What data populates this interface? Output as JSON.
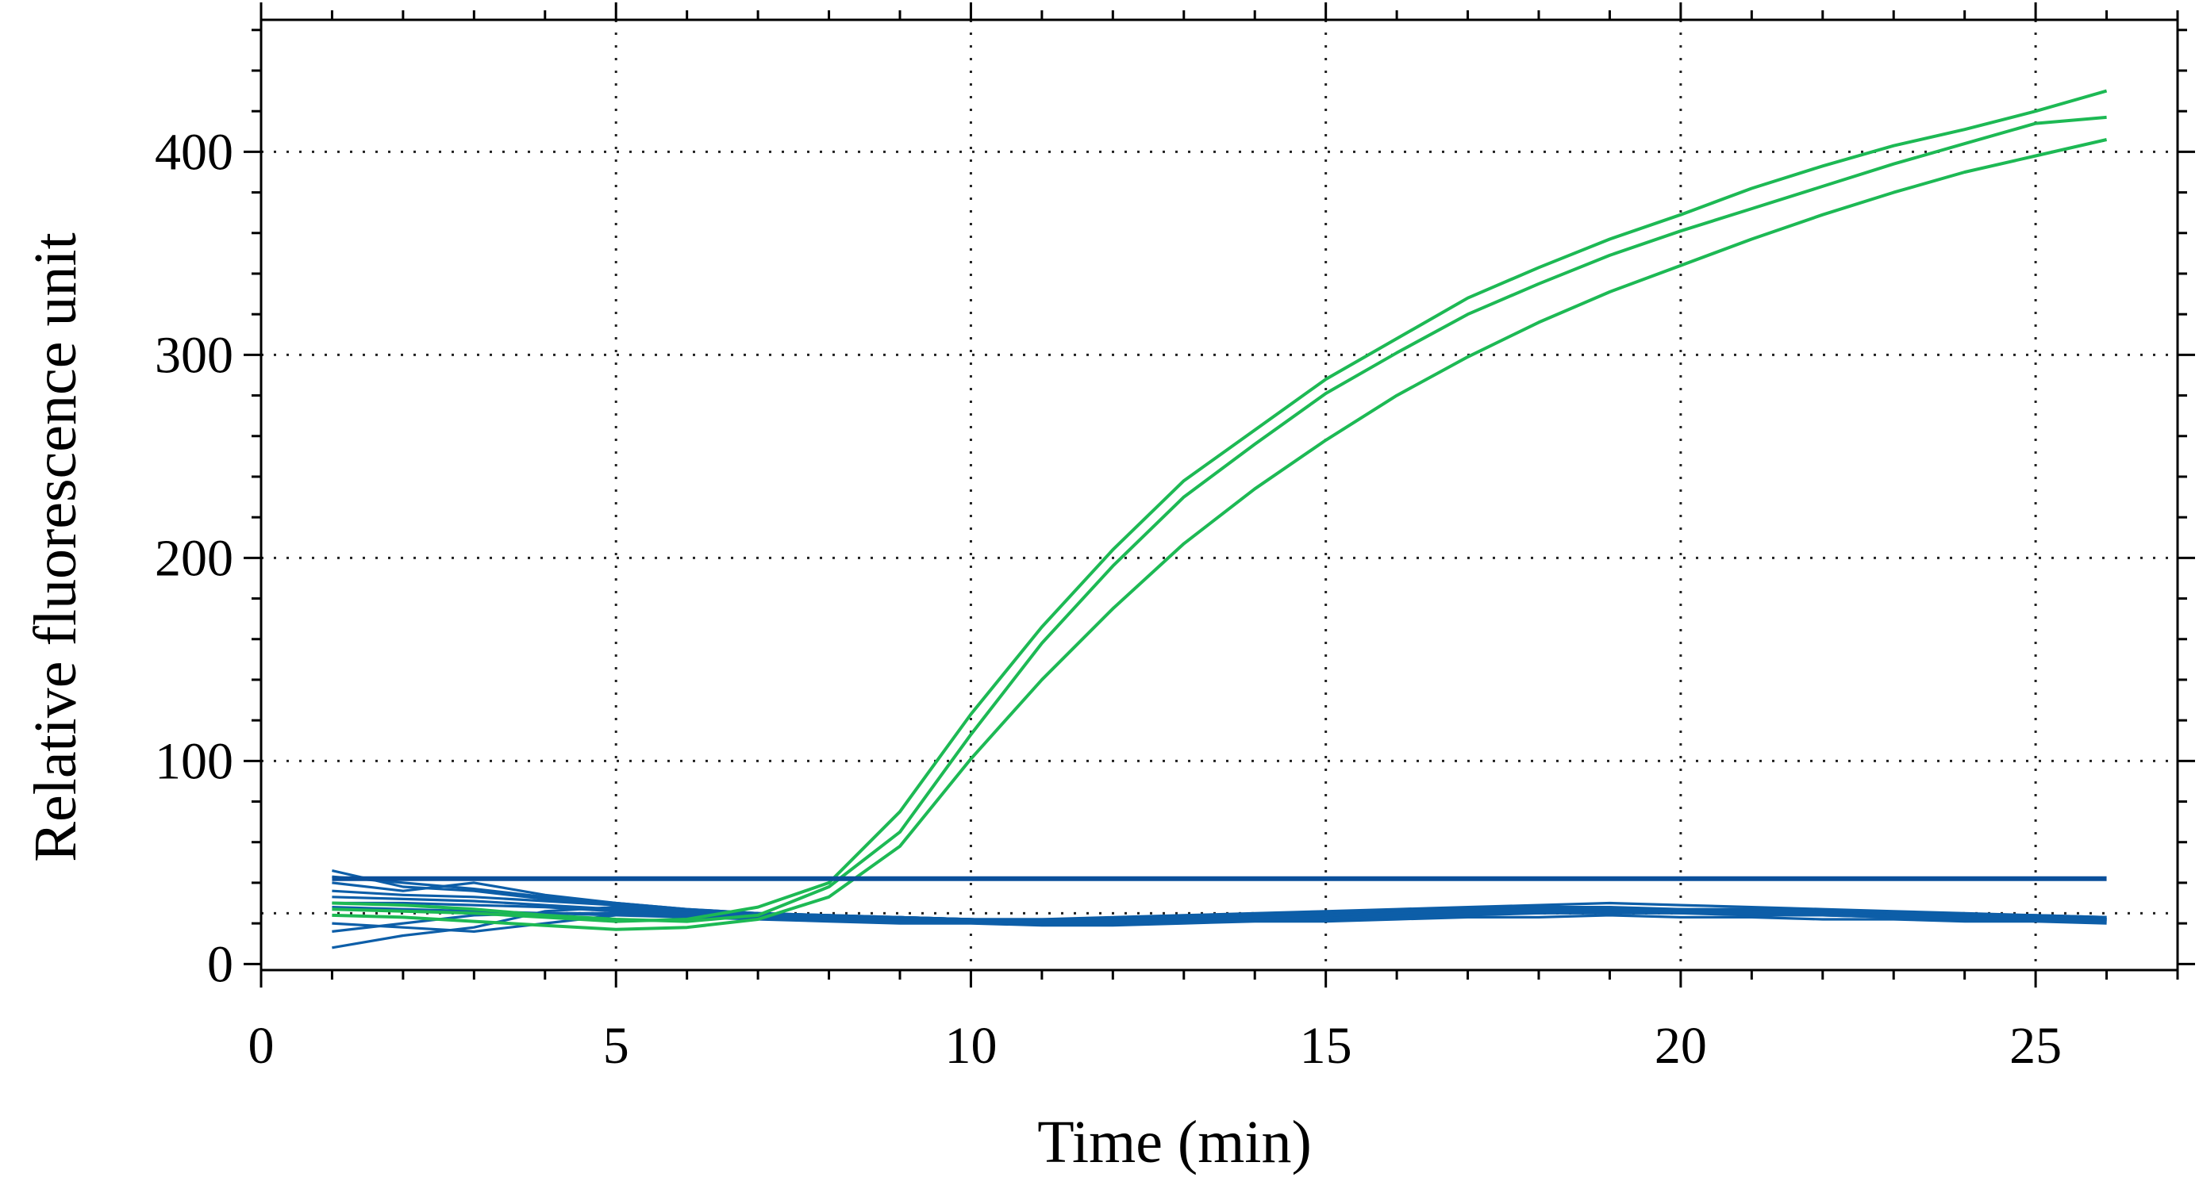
{
  "chart_data": {
    "type": "line",
    "title": "",
    "xlabel": "Time (min)",
    "ylabel": "Relative fluorescence unit",
    "xlim": [
      0,
      27
    ],
    "ylim": [
      -3,
      465
    ],
    "xticks": [
      0,
      5,
      10,
      15,
      20,
      25
    ],
    "yticks": [
      {
        "value": 0,
        "label": "0"
      },
      {
        "value": 100,
        "label": "100"
      },
      {
        "value": 200,
        "label": "200"
      },
      {
        "value": 300,
        "label": "300"
      },
      {
        "value": 400,
        "label": "400"
      }
    ],
    "grid_x": [
      5,
      10,
      15,
      20,
      25
    ],
    "grid_y": [
      25,
      100,
      200,
      300,
      400
    ],
    "grid": "dotted",
    "colors": {
      "positive": "#1db954",
      "negative": "#0d5ea8",
      "threshold": "#0a4f9a"
    },
    "threshold": {
      "y": 42,
      "x": [
        1,
        26
      ]
    },
    "positive_series": [
      {
        "x": [
          1,
          2,
          3,
          4,
          5,
          6,
          7,
          8,
          9,
          10,
          11,
          12,
          13,
          14,
          15,
          16,
          17,
          18,
          19,
          20,
          21,
          22,
          23,
          24,
          25,
          26
        ],
        "y": [
          27,
          26,
          25,
          23,
          21,
          22,
          28,
          40,
          75,
          123,
          166,
          204,
          238,
          263,
          288,
          308,
          328,
          343,
          357,
          369,
          382,
          393,
          403,
          411,
          420,
          430
        ]
      },
      {
        "x": [
          1,
          2,
          3,
          4,
          5,
          6,
          7,
          8,
          9,
          10,
          11,
          12,
          13,
          14,
          15,
          16,
          17,
          18,
          19,
          20,
          21,
          22,
          23,
          24,
          25,
          26
        ],
        "y": [
          30,
          29,
          27,
          24,
          22,
          21,
          24,
          38,
          65,
          113,
          158,
          196,
          230,
          256,
          281,
          301,
          320,
          335,
          349,
          361,
          372,
          383,
          394,
          404,
          414,
          417
        ]
      },
      {
        "x": [
          1,
          2,
          3,
          4,
          5,
          6,
          7,
          8,
          9,
          10,
          11,
          12,
          13,
          14,
          15,
          16,
          17,
          18,
          19,
          20,
          21,
          22,
          23,
          24,
          25,
          26
        ],
        "y": [
          24,
          23,
          21,
          19,
          17,
          18,
          22,
          33,
          58,
          101,
          140,
          175,
          207,
          234,
          258,
          280,
          299,
          316,
          331,
          344,
          357,
          369,
          380,
          390,
          398,
          406
        ]
      }
    ],
    "negative_series": [
      {
        "x": [
          1,
          2,
          3,
          4,
          5,
          6,
          7,
          8,
          9,
          10,
          11,
          12,
          13,
          14,
          15,
          16,
          17,
          18,
          19,
          20,
          21,
          22,
          23,
          24,
          25,
          26
        ],
        "y": [
          46,
          38,
          36,
          32,
          29,
          25,
          24,
          23,
          23,
          22,
          22,
          23,
          24,
          25,
          26,
          27,
          28,
          29,
          30,
          29,
          28,
          27,
          26,
          25,
          24,
          23
        ]
      },
      {
        "x": [
          1,
          2,
          3,
          4,
          5,
          6,
          7,
          8,
          9,
          10,
          11,
          12,
          13,
          14,
          15,
          16,
          17,
          18,
          19,
          20,
          21,
          22,
          23,
          24,
          25,
          26
        ],
        "y": [
          40,
          36,
          40,
          34,
          30,
          27,
          25,
          24,
          23,
          22,
          21,
          22,
          23,
          24,
          25,
          26,
          27,
          28,
          28,
          27,
          27,
          26,
          25,
          24,
          24,
          23
        ]
      },
      {
        "x": [
          1,
          2,
          3,
          4,
          5,
          6,
          7,
          8,
          9,
          10,
          11,
          12,
          13,
          14,
          15,
          16,
          17,
          18,
          19,
          20,
          21,
          22,
          23,
          24,
          25,
          26
        ],
        "y": [
          36,
          34,
          33,
          31,
          29,
          26,
          25,
          24,
          22,
          22,
          21,
          22,
          22,
          24,
          25,
          25,
          26,
          27,
          27,
          27,
          26,
          25,
          25,
          24,
          23,
          22
        ]
      },
      {
        "x": [
          1,
          2,
          3,
          4,
          5,
          6,
          7,
          8,
          9,
          10,
          11,
          12,
          13,
          14,
          15,
          16,
          17,
          18,
          19,
          20,
          21,
          22,
          23,
          24,
          25,
          26
        ],
        "y": [
          8,
          14,
          18,
          26,
          28,
          26,
          24,
          23,
          23,
          22,
          22,
          22,
          23,
          24,
          24,
          25,
          26,
          27,
          27,
          26,
          26,
          25,
          24,
          24,
          23,
          22
        ]
      },
      {
        "x": [
          1,
          2,
          3,
          4,
          5,
          6,
          7,
          8,
          9,
          10,
          11,
          12,
          13,
          14,
          15,
          16,
          17,
          18,
          19,
          20,
          21,
          22,
          23,
          24,
          25,
          26
        ],
        "y": [
          33,
          32,
          31,
          29,
          27,
          25,
          24,
          22,
          22,
          21,
          21,
          21,
          22,
          23,
          23,
          24,
          25,
          26,
          26,
          26,
          25,
          25,
          24,
          23,
          22,
          22
        ]
      },
      {
        "x": [
          1,
          2,
          3,
          4,
          5,
          6,
          7,
          8,
          9,
          10,
          11,
          12,
          13,
          14,
          15,
          16,
          17,
          18,
          19,
          20,
          21,
          22,
          23,
          24,
          25,
          26
        ],
        "y": [
          30,
          30,
          29,
          28,
          26,
          24,
          23,
          22,
          21,
          21,
          20,
          20,
          21,
          22,
          22,
          23,
          24,
          25,
          25,
          25,
          24,
          24,
          23,
          22,
          22,
          21
        ]
      },
      {
        "x": [
          1,
          2,
          3,
          4,
          5,
          6,
          7,
          8,
          9,
          10,
          11,
          12,
          13,
          14,
          15,
          16,
          17,
          18,
          19,
          20,
          21,
          22,
          23,
          24,
          25,
          26
        ],
        "y": [
          28,
          27,
          26,
          25,
          24,
          23,
          22,
          21,
          20,
          20,
          19,
          19,
          20,
          21,
          21,
          22,
          23,
          23,
          24,
          23,
          23,
          22,
          22,
          21,
          21,
          20
        ]
      },
      {
        "x": [
          1,
          2,
          3,
          4,
          5,
          6,
          7,
          8,
          9,
          10,
          11,
          12,
          13,
          14,
          15,
          16,
          17,
          18,
          19,
          20,
          21,
          22,
          23,
          24,
          25,
          26
        ],
        "y": [
          16,
          20,
          24,
          25,
          25,
          24,
          23,
          22,
          22,
          21,
          21,
          21,
          22,
          23,
          23,
          24,
          25,
          25,
          26,
          25,
          25,
          24,
          23,
          23,
          22,
          21
        ]
      },
      {
        "x": [
          1,
          2,
          3,
          4,
          5,
          6,
          7,
          8,
          9,
          10,
          11,
          12,
          13,
          14,
          15,
          16,
          17,
          18,
          19,
          20,
          21,
          22,
          23,
          24,
          25,
          26
        ],
        "y": [
          20,
          18,
          16,
          20,
          24,
          25,
          24,
          23,
          22,
          22,
          21,
          21,
          22,
          23,
          24,
          25,
          26,
          27,
          27,
          26,
          26,
          25,
          24,
          23,
          23,
          22
        ]
      },
      {
        "x": [
          1,
          2,
          3,
          4,
          5,
          6,
          7,
          8,
          9,
          10,
          11,
          12,
          13,
          14,
          15,
          16,
          17,
          18,
          19,
          20,
          21,
          22,
          23,
          24,
          25,
          26
        ],
        "y": [
          43,
          40,
          37,
          33,
          30,
          27,
          25,
          24,
          23,
          22,
          21,
          22,
          22,
          23,
          24,
          25,
          26,
          27,
          27,
          26,
          26,
          25,
          24,
          24,
          23,
          22
        ]
      }
    ]
  }
}
